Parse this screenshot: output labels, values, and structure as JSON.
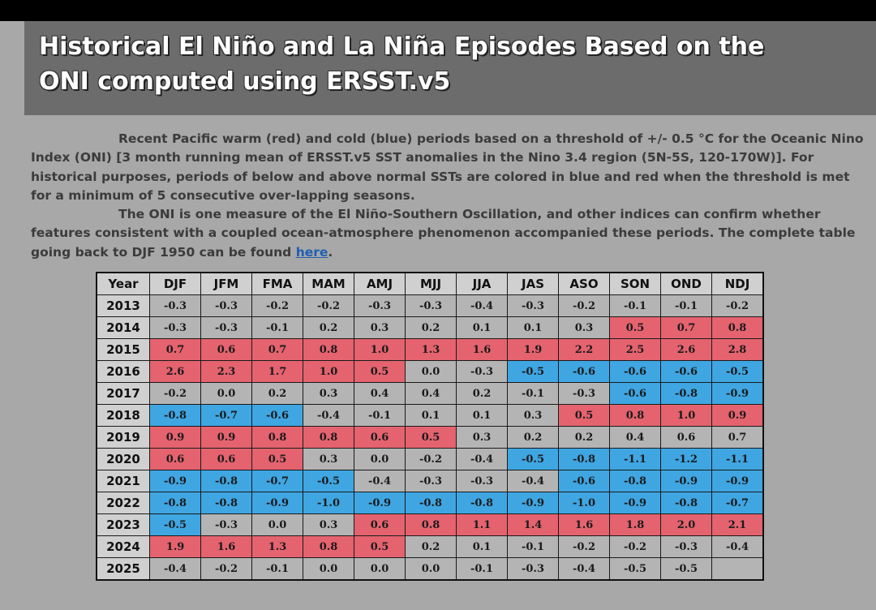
{
  "title": {
    "line1": "Historical El Niño and La Niña Episodes Based on the",
    "line2": "ONI computed using ERSST.v5"
  },
  "intro": {
    "p1": "Recent Pacific warm (red) and cold (blue) periods based on a threshold of +/- 0.5 °C for the Oceanic Nino Index (ONI) [3 month running mean of ERSST.v5 SST anomalies in the Nino 3.4 region (5N-5S, 120-170W)]. For historical purposes, periods of below and above normal SSTs are colored in blue and red when the threshold is met for a minimum of 5 consecutive over-lapping seasons.",
    "p2": "The ONI is one measure of the El Niño-Southern Oscillation, and other indices can confirm whether features consistent with a coupled ocean-atmosphere phenomenon accompanied these periods. The complete table going back to DJF 1950 can be found ",
    "link": "here",
    "p2_end": "."
  },
  "colors": {
    "warm": "#e4636f",
    "cold": "#3fa6e2",
    "neutral": "#b4b4b4",
    "link": "#1f5fb5"
  },
  "table": {
    "headers": [
      "Year",
      "DJF",
      "JFM",
      "FMA",
      "MAM",
      "AMJ",
      "MJJ",
      "JJA",
      "JAS",
      "ASO",
      "SON",
      "OND",
      "NDJ"
    ],
    "rows": [
      {
        "year": "2013",
        "values": [
          "-0.3",
          "-0.3",
          "-0.2",
          "-0.2",
          "-0.3",
          "-0.3",
          "-0.4",
          "-0.3",
          "-0.2",
          "-0.1",
          "-0.1",
          "-0.2"
        ],
        "phase": [
          "n",
          "n",
          "n",
          "n",
          "n",
          "n",
          "n",
          "n",
          "n",
          "n",
          "n",
          "n"
        ]
      },
      {
        "year": "2014",
        "values": [
          "-0.3",
          "-0.3",
          "-0.1",
          "0.2",
          "0.3",
          "0.2",
          "0.1",
          "0.1",
          "0.3",
          "0.5",
          "0.7",
          "0.8"
        ],
        "phase": [
          "n",
          "n",
          "n",
          "n",
          "n",
          "n",
          "n",
          "n",
          "n",
          "w",
          "w",
          "w"
        ]
      },
      {
        "year": "2015",
        "values": [
          "0.7",
          "0.6",
          "0.7",
          "0.8",
          "1.0",
          "1.3",
          "1.6",
          "1.9",
          "2.2",
          "2.5",
          "2.6",
          "2.8"
        ],
        "phase": [
          "w",
          "w",
          "w",
          "w",
          "w",
          "w",
          "w",
          "w",
          "w",
          "w",
          "w",
          "w"
        ]
      },
      {
        "year": "2016",
        "values": [
          "2.6",
          "2.3",
          "1.7",
          "1.0",
          "0.5",
          "0.0",
          "-0.3",
          "-0.5",
          "-0.6",
          "-0.6",
          "-0.6",
          "-0.5"
        ],
        "phase": [
          "w",
          "w",
          "w",
          "w",
          "w",
          "n",
          "n",
          "c",
          "c",
          "c",
          "c",
          "c"
        ]
      },
      {
        "year": "2017",
        "values": [
          "-0.2",
          "0.0",
          "0.2",
          "0.3",
          "0.4",
          "0.4",
          "0.2",
          "-0.1",
          "-0.3",
          "-0.6",
          "-0.8",
          "-0.9"
        ],
        "phase": [
          "n",
          "n",
          "n",
          "n",
          "n",
          "n",
          "n",
          "n",
          "n",
          "c",
          "c",
          "c"
        ]
      },
      {
        "year": "2018",
        "values": [
          "-0.8",
          "-0.7",
          "-0.6",
          "-0.4",
          "-0.1",
          "0.1",
          "0.1",
          "0.3",
          "0.5",
          "0.8",
          "1.0",
          "0.9"
        ],
        "phase": [
          "c",
          "c",
          "c",
          "n",
          "n",
          "n",
          "n",
          "n",
          "w",
          "w",
          "w",
          "w"
        ]
      },
      {
        "year": "2019",
        "values": [
          "0.9",
          "0.9",
          "0.8",
          "0.8",
          "0.6",
          "0.5",
          "0.3",
          "0.2",
          "0.2",
          "0.4",
          "0.6",
          "0.7"
        ],
        "phase": [
          "w",
          "w",
          "w",
          "w",
          "w",
          "w",
          "n",
          "n",
          "n",
          "n",
          "n",
          "n"
        ]
      },
      {
        "year": "2020",
        "values": [
          "0.6",
          "0.6",
          "0.5",
          "0.3",
          "0.0",
          "-0.2",
          "-0.4",
          "-0.5",
          "-0.8",
          "-1.1",
          "-1.2",
          "-1.1"
        ],
        "phase": [
          "w",
          "w",
          "w",
          "n",
          "n",
          "n",
          "n",
          "c",
          "c",
          "c",
          "c",
          "c"
        ]
      },
      {
        "year": "2021",
        "values": [
          "-0.9",
          "-0.8",
          "-0.7",
          "-0.5",
          "-0.4",
          "-0.3",
          "-0.3",
          "-0.4",
          "-0.6",
          "-0.8",
          "-0.9",
          "-0.9"
        ],
        "phase": [
          "c",
          "c",
          "c",
          "c",
          "n",
          "n",
          "n",
          "n",
          "c",
          "c",
          "c",
          "c"
        ]
      },
      {
        "year": "2022",
        "values": [
          "-0.8",
          "-0.8",
          "-0.9",
          "-1.0",
          "-0.9",
          "-0.8",
          "-0.8",
          "-0.9",
          "-1.0",
          "-0.9",
          "-0.8",
          "-0.7"
        ],
        "phase": [
          "c",
          "c",
          "c",
          "c",
          "c",
          "c",
          "c",
          "c",
          "c",
          "c",
          "c",
          "c"
        ]
      },
      {
        "year": "2023",
        "values": [
          "-0.5",
          "-0.3",
          "0.0",
          "0.3",
          "0.6",
          "0.8",
          "1.1",
          "1.4",
          "1.6",
          "1.8",
          "2.0",
          "2.1"
        ],
        "phase": [
          "c",
          "n",
          "n",
          "n",
          "w",
          "w",
          "w",
          "w",
          "w",
          "w",
          "w",
          "w"
        ]
      },
      {
        "year": "2024",
        "values": [
          "1.9",
          "1.6",
          "1.3",
          "0.8",
          "0.5",
          "0.2",
          "0.1",
          "-0.1",
          "-0.2",
          "-0.2",
          "-0.3",
          "-0.4"
        ],
        "phase": [
          "w",
          "w",
          "w",
          "w",
          "w",
          "n",
          "n",
          "n",
          "n",
          "n",
          "n",
          "n"
        ]
      },
      {
        "year": "2025",
        "values": [
          "-0.4",
          "-0.2",
          "-0.1",
          "0.0",
          "0.0",
          "0.0",
          "-0.1",
          "-0.3",
          "-0.4",
          "-0.5",
          "-0.5",
          ""
        ],
        "phase": [
          "n",
          "n",
          "n",
          "n",
          "n",
          "n",
          "n",
          "n",
          "n",
          "n",
          "n",
          "e"
        ]
      }
    ]
  }
}
